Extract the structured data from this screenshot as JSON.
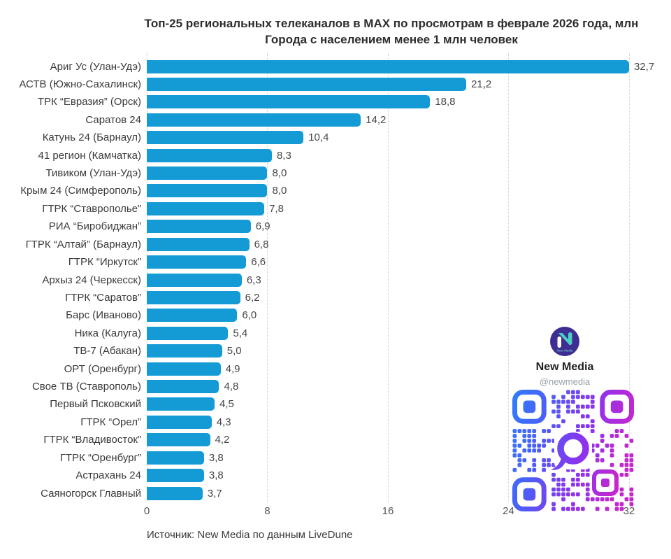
{
  "title": "Топ-25 региональных телеканалов в MAX по просмотрам в феврале 2026 года, млн",
  "subtitle": "Города с населением менее 1 млн человек",
  "source": "Источник: New Media по данным LiveDune",
  "branding": {
    "name": "New Media",
    "handle": "@newmedia",
    "logo_letter": "N",
    "logo_subtext": "New Media",
    "logo_color": "#3e2d92",
    "logo_accent": "#49d2c3"
  },
  "colors": {
    "bar": "#149bd6",
    "grid": "#cfcfcf",
    "text": "#3a3a3a",
    "qr_gradient": [
      "#2f7dfe",
      "#4b5ff8",
      "#8b33ee",
      "#c527ce"
    ]
  },
  "chart_data": {
    "type": "bar",
    "orientation": "horizontal",
    "title": "Топ-25 региональных телеканалов в MAX по просмотрам в феврале 2026 года, млн",
    "subtitle": "Города с населением менее 1 млн человек",
    "categories": [
      "Ариг Ус (Улан-Удэ)",
      "АСТВ (Южно-Сахалинск)",
      "ТРК “Евразия” (Орск)",
      "Саратов 24",
      "Катунь 24 (Барнаул)",
      "41 регион (Камчатка)",
      "Тивиком (Улан-Удэ)",
      "Крым 24 (Симферополь)",
      "ГТРК “Ставрополье”",
      "РИА “Биробиджан”",
      "ГТРК “Алтай” (Барнаул)",
      "ГТРК “Иркутск”",
      "Архыз 24 (Черкесск)",
      "ГТРК “Саратов”",
      "Барс (Иваново)",
      "Ника (Калуга)",
      "ТВ-7 (Абакан)",
      "ОРТ (Оренбург)",
      "Свое ТВ (Ставрополь)",
      "Первый Псковский",
      "ГТРК “Орел”",
      "ГТРК “Владивосток”",
      "ГТРК “Оренбург”",
      "Астрахань 24",
      "Саяногорск Главный"
    ],
    "values": [
      32.7,
      21.2,
      18.8,
      14.2,
      10.4,
      8.3,
      8.0,
      8.0,
      7.8,
      6.9,
      6.8,
      6.6,
      6.3,
      6.2,
      6.0,
      5.4,
      5.0,
      4.9,
      4.8,
      4.5,
      4.3,
      4.2,
      3.8,
      3.8,
      3.7
    ],
    "value_labels": [
      "32,7",
      "21,2",
      "18,8",
      "14,2",
      "10,4",
      "8,3",
      "8,0",
      "8,0",
      "7,8",
      "6,9",
      "6,8",
      "6,6",
      "6,3",
      "6,2",
      "6,0",
      "5,4",
      "5,0",
      "4,9",
      "4,8",
      "4,5",
      "4,3",
      "4,2",
      "3,8",
      "3,8",
      "3,7"
    ],
    "x_ticks": [
      "0",
      "8",
      "16",
      "24",
      "32"
    ],
    "x_tick_values": [
      0,
      8,
      16,
      24,
      32
    ],
    "xlim": [
      0,
      32
    ],
    "grid": "vertical-dotted",
    "legend": "none"
  }
}
